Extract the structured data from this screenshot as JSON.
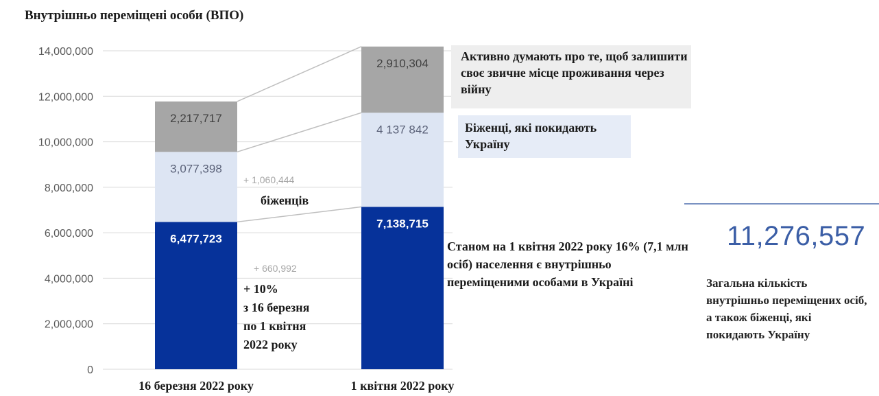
{
  "chart_data": {
    "type": "bar",
    "stacked": true,
    "title": "Внутрішньо переміщені особи (ВПО)",
    "categories": [
      "16 березня 2022  року",
      "1 квітня 2022 року"
    ],
    "series": [
      {
        "key": "idp",
        "values": [
          6477723,
          7138715
        ],
        "labels": [
          "6,477,723",
          "7,138,715"
        ],
        "color": "#06329a"
      },
      {
        "key": "refugees",
        "values": [
          3077398,
          4137842
        ],
        "labels": [
          "3,077,398",
          "4 137 842"
        ],
        "color": "#dde5f3"
      },
      {
        "key": "considering",
        "values": [
          2217717,
          2910304
        ],
        "labels": [
          "2,217,717",
          "2,910,304"
        ],
        "color": "#a6a6a6"
      }
    ],
    "ylim": [
      0,
      14000000
    ],
    "yticks": [
      0,
      2000000,
      4000000,
      6000000,
      8000000,
      10000000,
      12000000,
      14000000
    ],
    "ytick_labels": [
      "0",
      "2,000,000",
      "4,000,000",
      "6,000,000",
      "8,000,000",
      "10,000,000",
      "12,000,000",
      "14,000,000"
    ],
    "grid": true,
    "annotations": {
      "refugees_delta": "+ 1,060,444",
      "idp_delta": "+ 660,992"
    }
  },
  "notes": {
    "considering": "Активно думають про те, щоб залишити своє звичне місце проживання через війну",
    "refugees": "Біженці, які покидають Україну",
    "refugees_word": "біженців",
    "growth_line1": "+ 10%",
    "growth_line2": "з 16 березня",
    "growth_line3": "по 1 квітня",
    "growth_line4": "2022 року",
    "status": "Станом на 1 квітня 2022 року 16% (7,1 млн осіб)  населення є внутрішньо переміщеними особами в Україні"
  },
  "total": {
    "value": "11,276,557",
    "caption": "Загальна кількість внутрішньо переміщених осіб, а також біженці, які покидають Україну"
  },
  "colors": {
    "idp": "#06329a",
    "refugees": "#dde5f3",
    "considering": "#a6a6a6",
    "total_text": "#3b5ea6"
  }
}
